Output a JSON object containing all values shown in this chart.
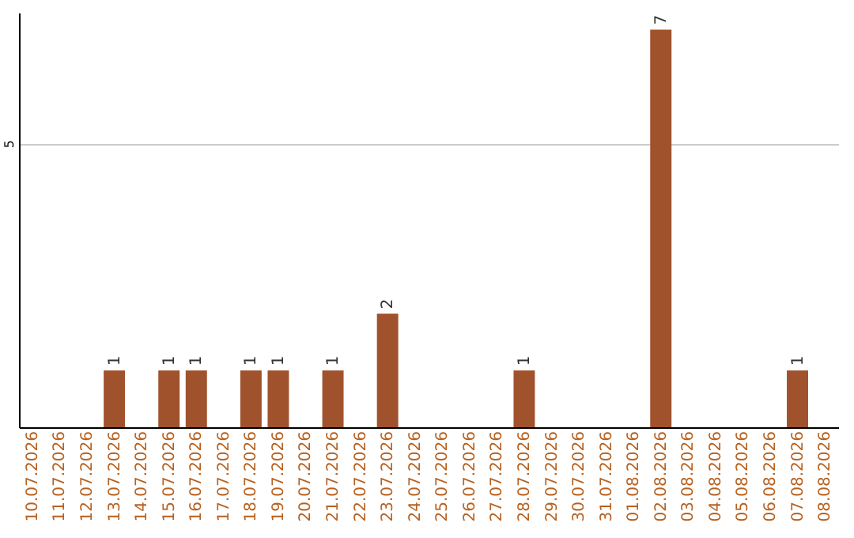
{
  "chart_data": {
    "type": "bar",
    "categories": [
      "10.07.2026",
      "11.07.2026",
      "12.07.2026",
      "13.07.2026",
      "14.07.2026",
      "15.07.2026",
      "16.07.2026",
      "17.07.2026",
      "18.07.2026",
      "19.07.2026",
      "20.07.2026",
      "21.07.2026",
      "22.07.2026",
      "23.07.2026",
      "24.07.2026",
      "25.07.2026",
      "26.07.2026",
      "27.07.2026",
      "28.07.2026",
      "29.07.2026",
      "30.07.2026",
      "31.07.2026",
      "01.08.2026",
      "02.08.2026",
      "03.08.2026",
      "04.08.2026",
      "05.08.2026",
      "06.08.2026",
      "07.08.2026",
      "08.08.2026"
    ],
    "values": [
      0,
      0,
      0,
      1,
      0,
      1,
      1,
      0,
      1,
      1,
      0,
      1,
      0,
      2,
      0,
      0,
      0,
      0,
      1,
      0,
      0,
      0,
      0,
      7,
      0,
      0,
      0,
      0,
      1,
      0
    ],
    "color": "#a0522d",
    "value_labels": [
      null,
      null,
      null,
      "1",
      null,
      "1",
      "1",
      null,
      "1",
      "1",
      null,
      "1",
      null,
      "2",
      null,
      null,
      null,
      null,
      "1",
      null,
      null,
      null,
      null,
      "7",
      null,
      null,
      null,
      null,
      "1",
      null
    ],
    "ylim": [
      0,
      7.3
    ],
    "yticks": [
      5
    ],
    "grid": "y"
  }
}
